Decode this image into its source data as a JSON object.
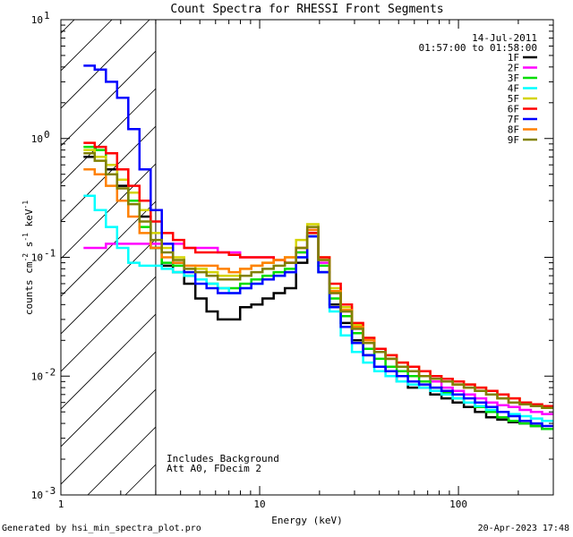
{
  "chart_data": {
    "type": "line",
    "title": "Count Spectra for RHESSI Front Segments",
    "xlabel": "Energy (keV)",
    "ylabel_parts": [
      "counts cm",
      "-2",
      " s",
      "-1",
      " keV",
      "-1"
    ],
    "xscale": "log",
    "yscale": "log",
    "xlim": [
      1,
      300
    ],
    "ylim": [
      0.001,
      10
    ],
    "x_ticks": [
      {
        "v": 1,
        "label": "1"
      },
      {
        "v": 10,
        "label": "10"
      },
      {
        "v": 100,
        "label": "100"
      }
    ],
    "y_ticks": [
      {
        "v": 10,
        "label": "10",
        "exp": "1"
      },
      {
        "v": 1,
        "label": "10",
        "exp": "0"
      },
      {
        "v": 0.1,
        "label": "10",
        "exp": "-1"
      },
      {
        "v": 0.01,
        "label": "10",
        "exp": "-2"
      },
      {
        "v": 0.001,
        "label": "10",
        "exp": "-3"
      }
    ],
    "date": "14-Jul-2011",
    "time_range": "01:57:00 to 01:58:00",
    "shaded_below_keV": 3,
    "annotations": [
      "Includes Background",
      "Att A0, FDecim 2"
    ],
    "series": [
      {
        "name": "1F",
        "color": "#000000",
        "values": [
          0.7,
          0.7,
          0.55,
          0.4,
          0.3,
          0.22,
          0.12,
          0.085,
          0.075,
          0.06,
          0.045,
          0.035,
          0.03,
          0.03,
          0.038,
          0.04,
          0.045,
          0.05,
          0.055,
          0.09,
          0.15,
          0.075,
          0.04,
          0.028,
          0.02,
          0.015,
          0.012,
          0.011,
          0.009,
          0.008,
          0.008,
          0.007,
          0.0065,
          0.006,
          0.0055,
          0.005,
          0.0045,
          0.0043,
          0.0041,
          0.004,
          0.0038,
          0.0036
        ]
      },
      {
        "name": "2F",
        "color": "#ff00ff",
        "values": [
          0.12,
          0.12,
          0.13,
          0.13,
          0.13,
          0.13,
          0.13,
          0.13,
          0.13,
          0.12,
          0.12,
          0.12,
          0.11,
          0.11,
          0.1,
          0.1,
          0.1,
          0.095,
          0.09,
          0.11,
          0.17,
          0.09,
          0.05,
          0.035,
          0.025,
          0.019,
          0.016,
          0.014,
          0.012,
          0.011,
          0.01,
          0.009,
          0.008,
          0.0075,
          0.007,
          0.0065,
          0.006,
          0.0057,
          0.0055,
          0.0052,
          0.005,
          0.0048
        ]
      },
      {
        "name": "3F",
        "color": "#00dd00",
        "values": [
          0.85,
          0.8,
          0.6,
          0.45,
          0.3,
          0.18,
          0.12,
          0.09,
          0.085,
          0.07,
          0.065,
          0.06,
          0.055,
          0.055,
          0.06,
          0.065,
          0.07,
          0.075,
          0.08,
          0.11,
          0.16,
          0.085,
          0.045,
          0.032,
          0.023,
          0.017,
          0.014,
          0.012,
          0.011,
          0.01,
          0.009,
          0.008,
          0.0072,
          0.0065,
          0.006,
          0.0055,
          0.005,
          0.0045,
          0.0042,
          0.004,
          0.0038,
          0.0036
        ]
      },
      {
        "name": "4F",
        "color": "#00ffff",
        "values": [
          0.33,
          0.25,
          0.18,
          0.12,
          0.09,
          0.085,
          0.085,
          0.08,
          0.075,
          0.07,
          0.065,
          0.06,
          0.055,
          0.05,
          0.055,
          0.06,
          0.065,
          0.07,
          0.075,
          0.1,
          0.15,
          0.075,
          0.035,
          0.022,
          0.016,
          0.013,
          0.011,
          0.01,
          0.009,
          0.0085,
          0.008,
          0.0075,
          0.007,
          0.0065,
          0.006,
          0.0056,
          0.0052,
          0.005,
          0.0048,
          0.0046,
          0.0044,
          0.0042
        ]
      },
      {
        "name": "5F",
        "color": "#d4d400",
        "values": [
          0.8,
          0.7,
          0.6,
          0.45,
          0.35,
          0.25,
          0.16,
          0.12,
          0.1,
          0.085,
          0.08,
          0.075,
          0.07,
          0.07,
          0.08,
          0.085,
          0.09,
          0.095,
          0.1,
          0.14,
          0.19,
          0.1,
          0.055,
          0.038,
          0.027,
          0.021,
          0.017,
          0.015,
          0.013,
          0.012,
          0.011,
          0.01,
          0.0095,
          0.009,
          0.0085,
          0.008,
          0.0075,
          0.007,
          0.0065,
          0.006,
          0.0058,
          0.0056
        ]
      },
      {
        "name": "6F",
        "color": "#ff0000",
        "values": [
          0.92,
          0.85,
          0.75,
          0.55,
          0.4,
          0.3,
          0.2,
          0.16,
          0.14,
          0.12,
          0.11,
          0.11,
          0.11,
          0.105,
          0.1,
          0.1,
          0.1,
          0.095,
          0.09,
          0.12,
          0.16,
          0.1,
          0.06,
          0.04,
          0.028,
          0.021,
          0.017,
          0.015,
          0.013,
          0.012,
          0.011,
          0.01,
          0.0095,
          0.009,
          0.0085,
          0.008,
          0.0075,
          0.007,
          0.0065,
          0.006,
          0.0058,
          0.0056
        ]
      },
      {
        "name": "7F",
        "color": "#0000ff",
        "values": [
          4.1,
          3.8,
          3.0,
          2.2,
          1.2,
          0.55,
          0.25,
          0.13,
          0.09,
          0.075,
          0.06,
          0.055,
          0.05,
          0.05,
          0.055,
          0.06,
          0.065,
          0.07,
          0.075,
          0.1,
          0.15,
          0.075,
          0.038,
          0.026,
          0.019,
          0.015,
          0.012,
          0.011,
          0.01,
          0.009,
          0.0085,
          0.008,
          0.0075,
          0.007,
          0.0065,
          0.006,
          0.0055,
          0.005,
          0.0046,
          0.0042,
          0.004,
          0.0038
        ]
      },
      {
        "name": "8F",
        "color": "#ff8000",
        "values": [
          0.55,
          0.5,
          0.4,
          0.3,
          0.22,
          0.16,
          0.12,
          0.1,
          0.09,
          0.085,
          0.085,
          0.085,
          0.08,
          0.075,
          0.08,
          0.085,
          0.09,
          0.095,
          0.1,
          0.12,
          0.17,
          0.095,
          0.052,
          0.036,
          0.026,
          0.02,
          0.016,
          0.014,
          0.012,
          0.011,
          0.01,
          0.0095,
          0.009,
          0.0085,
          0.008,
          0.0075,
          0.007,
          0.0065,
          0.006,
          0.0058,
          0.0056,
          0.0054
        ]
      },
      {
        "name": "9F",
        "color": "#808000",
        "values": [
          0.75,
          0.65,
          0.5,
          0.38,
          0.28,
          0.2,
          0.14,
          0.11,
          0.095,
          0.08,
          0.075,
          0.07,
          0.065,
          0.065,
          0.07,
          0.075,
          0.08,
          0.085,
          0.09,
          0.12,
          0.18,
          0.095,
          0.05,
          0.035,
          0.025,
          0.019,
          0.016,
          0.014,
          0.012,
          0.011,
          0.01,
          0.0095,
          0.009,
          0.0085,
          0.008,
          0.0075,
          0.007,
          0.0065,
          0.006,
          0.0058,
          0.0056,
          0.0054
        ]
      }
    ]
  },
  "footer": {
    "left": "Generated by hsi_min_spectra_plot.pro",
    "right": "20-Apr-2023 17:48"
  }
}
